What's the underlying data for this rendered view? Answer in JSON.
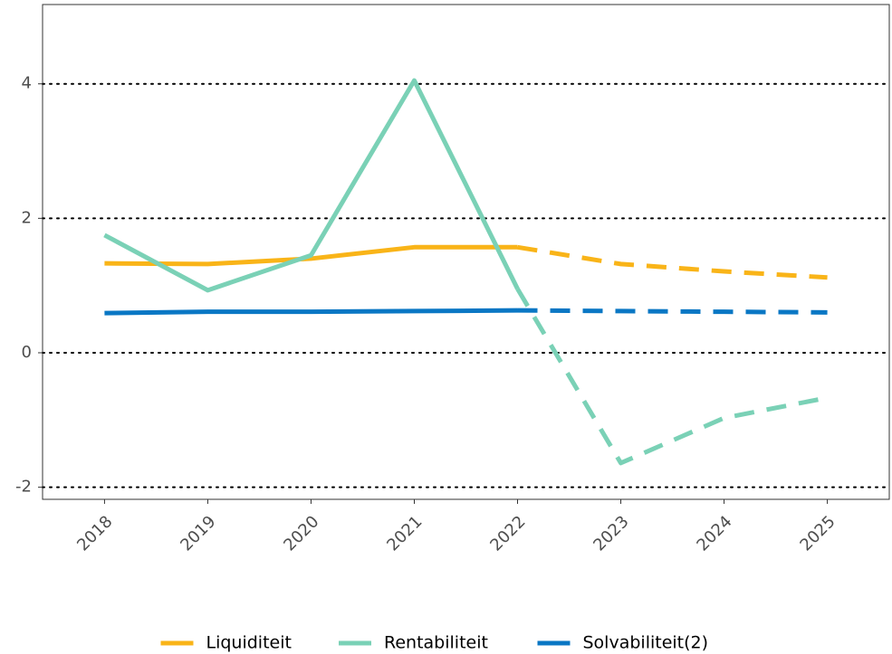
{
  "chart_data": {
    "type": "line",
    "categories": [
      "2018",
      "2019",
      "2020",
      "2021",
      "2022",
      "2023",
      "2024",
      "2025"
    ],
    "dashed_from": "2022",
    "series": [
      {
        "name": "Liquiditeit",
        "color": "#f9b418",
        "values": [
          1.33,
          1.32,
          1.4,
          1.57,
          1.57,
          1.32,
          1.21,
          1.12
        ]
      },
      {
        "name": "Rentabiliteit",
        "color": "#7ad1b6",
        "values": [
          1.75,
          0.93,
          1.45,
          4.05,
          0.95,
          -1.64,
          -0.97,
          -0.67
        ]
      },
      {
        "name": "Solvabiliteit(2)",
        "color": "#0a77c4",
        "values": [
          0.59,
          0.61,
          0.61,
          0.62,
          0.63,
          0.62,
          0.61,
          0.6
        ]
      }
    ],
    "ylim": [
      -2.18,
      5.18
    ],
    "yticks": [
      -2,
      0,
      2,
      4
    ],
    "grid": true
  }
}
